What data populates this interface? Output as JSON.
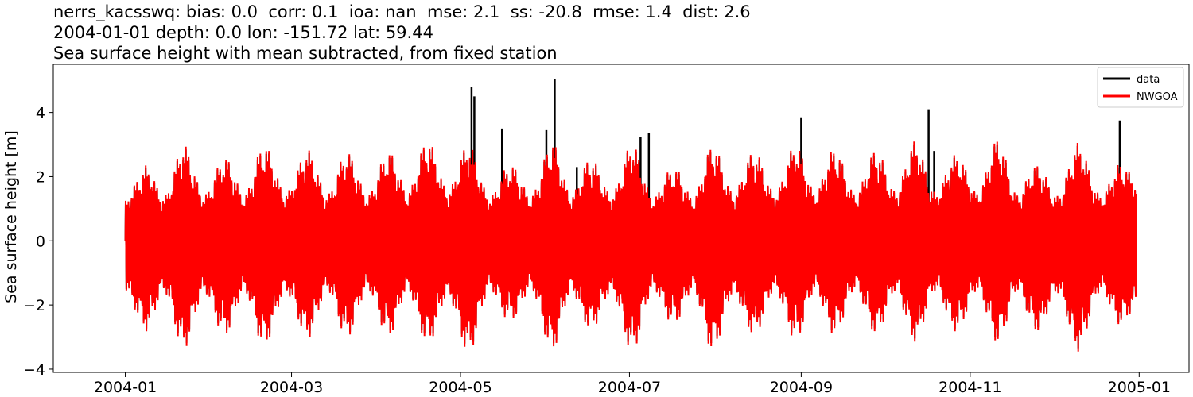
{
  "titles": {
    "line1": "nerrs_kacsswq: bias: 0.0  corr: 0.1  ioa: nan  mse: 2.1  ss: -20.8  rmse: 1.4  dist: 2.6",
    "line2": "2004-01-01 depth: 0.0 lon: -151.72 lat: 59.44",
    "line3": "Sea surface height with mean subtracted, from fixed station"
  },
  "chart_data": {
    "type": "line",
    "ylabel": "Sea surface height [m]",
    "xlabel": "",
    "xlim": [
      "2003-12-06",
      "2005-01-19"
    ],
    "ylim": [
      -4.1,
      5.5
    ],
    "x_ticks": [
      "2004-01",
      "2004-03",
      "2004-05",
      "2004-07",
      "2004-09",
      "2004-11",
      "2005-01"
    ],
    "y_ticks": [
      -4,
      -2,
      0,
      2,
      4
    ],
    "grid": false,
    "legend": {
      "position": "top-right"
    },
    "series": [
      {
        "name": "data",
        "color": "#000000",
        "x_range": [
          "2004-01-01",
          "2004-12-31"
        ],
        "notable_peaks": [
          {
            "x": "2004-05-05",
            "y": 4.8
          },
          {
            "x": "2004-05-06",
            "y": 4.5
          },
          {
            "x": "2004-05-16",
            "y": 3.5
          },
          {
            "x": "2004-06-01",
            "y": 3.45
          },
          {
            "x": "2004-06-04",
            "y": 5.05
          },
          {
            "x": "2004-06-12",
            "y": 2.3
          },
          {
            "x": "2004-07-05",
            "y": 3.25
          },
          {
            "x": "2004-07-08",
            "y": 3.35
          },
          {
            "x": "2004-09-01",
            "y": 3.85
          },
          {
            "x": "2004-10-17",
            "y": 4.1
          },
          {
            "x": "2004-10-19",
            "y": 2.8
          },
          {
            "x": "2004-12-25",
            "y": 3.75
          }
        ]
      },
      {
        "name": "NWGOA",
        "color": "#ff0000",
        "x_range": [
          "2004-01-01",
          "2004-12-31"
        ],
        "spring_tide_envelope": [
          {
            "x": "2004-01-08",
            "high": 2.4,
            "low": -2.9
          },
          {
            "x": "2004-01-22",
            "high": 3.1,
            "low": -3.5
          },
          {
            "x": "2004-02-06",
            "high": 2.65,
            "low": -3.0
          },
          {
            "x": "2004-02-20",
            "high": 3.1,
            "low": -3.4
          },
          {
            "x": "2004-03-07",
            "high": 2.9,
            "low": -3.1
          },
          {
            "x": "2004-03-21",
            "high": 2.85,
            "low": -3.1
          },
          {
            "x": "2004-04-05",
            "high": 2.85,
            "low": -3.05
          },
          {
            "x": "2004-04-19",
            "high": 3.25,
            "low": -3.3
          },
          {
            "x": "2004-05-04",
            "high": 3.1,
            "low": -3.65
          },
          {
            "x": "2004-05-19",
            "high": 2.4,
            "low": -2.5
          },
          {
            "x": "2004-06-03",
            "high": 3.2,
            "low": -3.6
          },
          {
            "x": "2004-06-17",
            "high": 2.6,
            "low": -2.8
          },
          {
            "x": "2004-07-02",
            "high": 3.15,
            "low": -3.6
          },
          {
            "x": "2004-07-17",
            "high": 2.3,
            "low": -2.6
          },
          {
            "x": "2004-07-31",
            "high": 3.1,
            "low": -3.6
          },
          {
            "x": "2004-08-15",
            "high": 2.85,
            "low": -3.0
          },
          {
            "x": "2004-08-30",
            "high": 3.1,
            "low": -3.2
          },
          {
            "x": "2004-09-13",
            "high": 2.95,
            "low": -3.0
          },
          {
            "x": "2004-09-28",
            "high": 2.9,
            "low": -3.0
          },
          {
            "x": "2004-10-12",
            "high": 3.2,
            "low": -3.25
          },
          {
            "x": "2004-10-27",
            "high": 2.75,
            "low": -2.9
          },
          {
            "x": "2004-11-11",
            "high": 3.3,
            "low": -3.3
          },
          {
            "x": "2004-11-25",
            "high": 2.4,
            "low": -2.9
          },
          {
            "x": "2004-12-10",
            "high": 3.15,
            "low": -3.55
          },
          {
            "x": "2004-12-26",
            "high": 2.5,
            "low": -2.7
          }
        ]
      }
    ]
  }
}
